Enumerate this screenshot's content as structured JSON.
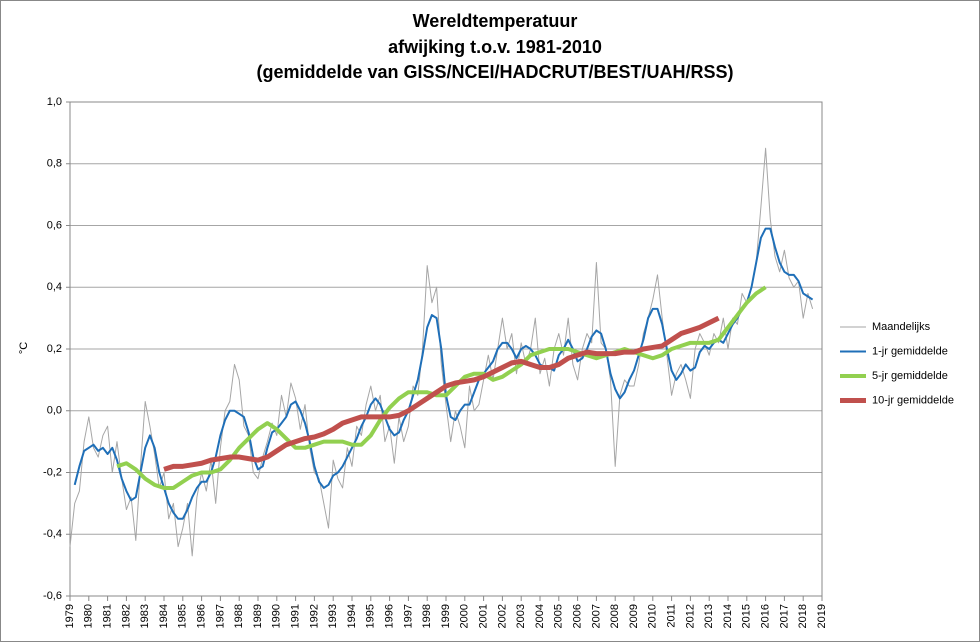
{
  "chart_data": {
    "type": "line",
    "title": "Wereldtemperatuur",
    "subtitle": [
      "afwijking t.o.v. 1981-2010",
      "(gemiddelde van GISS/NCEI/HADCRUT/BEST/UAH/RSS)"
    ],
    "y_label": "°C",
    "xlim": [
      1979,
      2019
    ],
    "xticks": [
      1979,
      1980,
      1981,
      1982,
      1983,
      1984,
      1985,
      1986,
      1987,
      1988,
      1989,
      1990,
      1991,
      1992,
      1993,
      1994,
      1995,
      1996,
      1997,
      1998,
      1999,
      2000,
      2001,
      2002,
      2003,
      2004,
      2005,
      2006,
      2007,
      2008,
      2009,
      2010,
      2011,
      2012,
      2013,
      2014,
      2015,
      2016,
      2017,
      2018,
      2019
    ],
    "ylim": [
      -0.6,
      1.0
    ],
    "yticks": [
      {
        "value": -0.6,
        "label": "-0,6"
      },
      {
        "value": -0.4,
        "label": "-0,4"
      },
      {
        "value": -0.2,
        "label": "-0,2"
      },
      {
        "value": 0,
        "label": "0,0"
      },
      {
        "value": 0.2,
        "label": "0,2"
      },
      {
        "value": 0.4,
        "label": "0,4"
      },
      {
        "value": 0.6,
        "label": "0,6"
      },
      {
        "value": 0.8,
        "label": "0,8"
      },
      {
        "value": 1.0,
        "label": "1,0"
      }
    ],
    "grid": true,
    "legend": "right",
    "series": [
      {
        "name": "Maandelijks",
        "color": "#a6a6a6",
        "width": 1,
        "x": [
          1979,
          1979.25,
          1979.5,
          1979.75,
          1980,
          1980.25,
          1980.5,
          1980.75,
          1981,
          1981.25,
          1981.5,
          1981.75,
          1982,
          1982.25,
          1982.5,
          1982.75,
          1983,
          1983.25,
          1983.5,
          1983.75,
          1984,
          1984.25,
          1984.5,
          1984.75,
          1985,
          1985.25,
          1985.5,
          1985.75,
          1986,
          1986.25,
          1986.5,
          1986.75,
          1987,
          1987.25,
          1987.5,
          1987.75,
          1988,
          1988.25,
          1988.5,
          1988.75,
          1989,
          1989.25,
          1989.5,
          1989.75,
          1990,
          1990.25,
          1990.5,
          1990.75,
          1991,
          1991.25,
          1991.5,
          1991.75,
          1992,
          1992.25,
          1992.5,
          1992.75,
          1993,
          1993.25,
          1993.5,
          1993.75,
          1994,
          1994.25,
          1994.5,
          1994.75,
          1995,
          1995.25,
          1995.5,
          1995.75,
          1996,
          1996.25,
          1996.5,
          1996.75,
          1997,
          1997.25,
          1997.5,
          1997.75,
          1998,
          1998.25,
          1998.5,
          1998.75,
          1999,
          1999.25,
          1999.5,
          1999.75,
          2000,
          2000.25,
          2000.5,
          2000.75,
          2001,
          2001.25,
          2001.5,
          2001.75,
          2002,
          2002.25,
          2002.5,
          2002.75,
          2003,
          2003.25,
          2003.5,
          2003.75,
          2004,
          2004.25,
          2004.5,
          2004.75,
          2005,
          2005.25,
          2005.5,
          2005.75,
          2006,
          2006.25,
          2006.5,
          2006.75,
          2007,
          2007.25,
          2007.5,
          2007.75,
          2008,
          2008.25,
          2008.5,
          2008.75,
          2009,
          2009.25,
          2009.5,
          2009.75,
          2010,
          2010.25,
          2010.5,
          2010.75,
          2011,
          2011.25,
          2011.5,
          2011.75,
          2012,
          2012.25,
          2012.5,
          2012.75,
          2013,
          2013.25,
          2013.5,
          2013.75,
          2014,
          2014.25,
          2014.5,
          2014.75,
          2015,
          2015.25,
          2015.5,
          2015.75,
          2016,
          2016.25,
          2016.5,
          2016.75,
          2017,
          2017.25,
          2017.5,
          2017.75,
          2018,
          2018.25,
          2018.5
        ],
        "values": [
          -0.44,
          -0.3,
          -0.26,
          -0.1,
          -0.02,
          -0.12,
          -0.15,
          -0.08,
          -0.05,
          -0.2,
          -0.1,
          -0.22,
          -0.32,
          -0.28,
          -0.42,
          -0.18,
          0.03,
          -0.05,
          -0.14,
          -0.25,
          -0.2,
          -0.35,
          -0.3,
          -0.44,
          -0.38,
          -0.3,
          -0.47,
          -0.28,
          -0.2,
          -0.26,
          -0.16,
          -0.3,
          -0.12,
          0.0,
          0.03,
          0.15,
          0.1,
          -0.05,
          -0.08,
          -0.2,
          -0.22,
          -0.15,
          -0.1,
          -0.04,
          -0.08,
          0.05,
          -0.02,
          0.09,
          0.04,
          -0.06,
          0.02,
          -0.12,
          -0.2,
          -0.22,
          -0.3,
          -0.38,
          -0.16,
          -0.22,
          -0.25,
          -0.12,
          -0.18,
          -0.05,
          -0.08,
          0.02,
          0.08,
          0.0,
          0.05,
          -0.1,
          -0.05,
          -0.17,
          -0.02,
          -0.1,
          -0.05,
          0.08,
          0.05,
          0.2,
          0.47,
          0.35,
          0.4,
          0.15,
          0.02,
          -0.1,
          0.0,
          -0.05,
          -0.12,
          0.08,
          0.0,
          0.02,
          0.1,
          0.18,
          0.1,
          0.2,
          0.3,
          0.2,
          0.25,
          0.12,
          0.22,
          0.15,
          0.2,
          0.3,
          0.12,
          0.17,
          0.08,
          0.2,
          0.25,
          0.18,
          0.3,
          0.15,
          0.1,
          0.2,
          0.25,
          0.22,
          0.48,
          0.22,
          0.2,
          0.1,
          -0.18,
          0.05,
          0.1,
          0.08,
          0.08,
          0.15,
          0.25,
          0.3,
          0.36,
          0.44,
          0.3,
          0.18,
          0.05,
          0.12,
          0.15,
          0.1,
          0.04,
          0.2,
          0.25,
          0.22,
          0.18,
          0.25,
          0.22,
          0.3,
          0.2,
          0.3,
          0.28,
          0.38,
          0.35,
          0.4,
          0.48,
          0.66,
          0.85,
          0.62,
          0.5,
          0.45,
          0.52,
          0.43,
          0.4,
          0.42,
          0.3,
          0.38,
          0.33
        ]
      },
      {
        "name": "1-jr gemiddelde",
        "color": "#1f6fb8",
        "width": 2,
        "x": [
          1979.25,
          1979.5,
          1979.75,
          1980,
          1980.25,
          1980.5,
          1980.75,
          1981,
          1981.25,
          1981.5,
          1981.75,
          1982,
          1982.25,
          1982.5,
          1982.75,
          1983,
          1983.25,
          1983.5,
          1983.75,
          1984,
          1984.25,
          1984.5,
          1984.75,
          1985,
          1985.25,
          1985.5,
          1985.75,
          1986,
          1986.25,
          1986.5,
          1986.75,
          1987,
          1987.25,
          1987.5,
          1987.75,
          1988,
          1988.25,
          1988.5,
          1988.75,
          1989,
          1989.25,
          1989.5,
          1989.75,
          1990,
          1990.25,
          1990.5,
          1990.75,
          1991,
          1991.25,
          1991.5,
          1991.75,
          1992,
          1992.25,
          1992.5,
          1992.75,
          1993,
          1993.25,
          1993.5,
          1993.75,
          1994,
          1994.25,
          1994.5,
          1994.75,
          1995,
          1995.25,
          1995.5,
          1995.75,
          1996,
          1996.25,
          1996.5,
          1996.75,
          1997,
          1997.25,
          1997.5,
          1997.75,
          1998,
          1998.25,
          1998.5,
          1998.75,
          1999,
          1999.25,
          1999.5,
          1999.75,
          2000,
          2000.25,
          2000.5,
          2000.75,
          2001,
          2001.25,
          2001.5,
          2001.75,
          2002,
          2002.25,
          2002.5,
          2002.75,
          2003,
          2003.25,
          2003.5,
          2003.75,
          2004,
          2004.25,
          2004.5,
          2004.75,
          2005,
          2005.25,
          2005.5,
          2005.75,
          2006,
          2006.25,
          2006.5,
          2006.75,
          2007,
          2007.25,
          2007.5,
          2007.75,
          2008,
          2008.25,
          2008.5,
          2008.75,
          2009,
          2009.25,
          2009.5,
          2009.75,
          2010,
          2010.25,
          2010.5,
          2010.75,
          2011,
          2011.25,
          2011.5,
          2011.75,
          2012,
          2012.25,
          2012.5,
          2012.75,
          2013,
          2013.25,
          2013.5,
          2013.75,
          2014,
          2014.25,
          2014.5,
          2014.75,
          2015,
          2015.25,
          2015.5,
          2015.75,
          2016,
          2016.25,
          2016.5,
          2016.75,
          2017,
          2017.25,
          2017.5,
          2017.75,
          2018,
          2018.25,
          2018.5
        ],
        "values": [
          -0.24,
          -0.18,
          -0.13,
          -0.12,
          -0.11,
          -0.13,
          -0.12,
          -0.14,
          -0.12,
          -0.16,
          -0.22,
          -0.26,
          -0.29,
          -0.28,
          -0.2,
          -0.12,
          -0.08,
          -0.12,
          -0.2,
          -0.25,
          -0.3,
          -0.33,
          -0.35,
          -0.35,
          -0.32,
          -0.28,
          -0.25,
          -0.23,
          -0.23,
          -0.2,
          -0.15,
          -0.08,
          -0.03,
          0.0,
          0.0,
          -0.01,
          -0.02,
          -0.07,
          -0.15,
          -0.19,
          -0.18,
          -0.12,
          -0.07,
          -0.06,
          -0.04,
          -0.02,
          0.02,
          0.03,
          0.0,
          -0.04,
          -0.1,
          -0.18,
          -0.23,
          -0.25,
          -0.24,
          -0.21,
          -0.2,
          -0.18,
          -0.15,
          -0.12,
          -0.09,
          -0.05,
          -0.02,
          0.02,
          0.04,
          0.02,
          -0.02,
          -0.06,
          -0.08,
          -0.07,
          -0.03,
          0.0,
          0.05,
          0.1,
          0.18,
          0.27,
          0.31,
          0.3,
          0.2,
          0.05,
          -0.02,
          -0.03,
          0.0,
          0.02,
          0.02,
          0.06,
          0.1,
          0.12,
          0.14,
          0.16,
          0.2,
          0.22,
          0.22,
          0.2,
          0.17,
          0.2,
          0.21,
          0.2,
          0.18,
          0.15,
          0.14,
          0.14,
          0.13,
          0.18,
          0.2,
          0.23,
          0.2,
          0.16,
          0.17,
          0.2,
          0.24,
          0.26,
          0.25,
          0.2,
          0.12,
          0.07,
          0.04,
          0.06,
          0.1,
          0.13,
          0.18,
          0.23,
          0.3,
          0.33,
          0.33,
          0.28,
          0.2,
          0.13,
          0.1,
          0.12,
          0.15,
          0.13,
          0.14,
          0.19,
          0.21,
          0.2,
          0.22,
          0.23,
          0.22,
          0.25,
          0.28,
          0.3,
          0.33,
          0.35,
          0.4,
          0.48,
          0.56,
          0.59,
          0.59,
          0.53,
          0.48,
          0.45,
          0.44,
          0.44,
          0.42,
          0.38,
          0.37,
          0.36
        ]
      },
      {
        "name": "5-jr gemiddelde",
        "color": "#92d050",
        "width": 4,
        "x": [
          1981.5,
          1982,
          1982.5,
          1983,
          1983.5,
          1984,
          1984.5,
          1985,
          1985.5,
          1986,
          1986.5,
          1987,
          1987.5,
          1988,
          1988.5,
          1989,
          1989.5,
          1990,
          1990.5,
          1991,
          1991.5,
          1992,
          1992.5,
          1993,
          1993.5,
          1994,
          1994.5,
          1995,
          1995.5,
          1996,
          1996.5,
          1997,
          1997.5,
          1998,
          1998.5,
          1999,
          1999.5,
          2000,
          2000.5,
          2001,
          2001.5,
          2002,
          2002.5,
          2003,
          2003.5,
          2004,
          2004.5,
          2005,
          2005.5,
          2006,
          2006.5,
          2007,
          2007.5,
          2008,
          2008.5,
          2009,
          2009.5,
          2010,
          2010.5,
          2011,
          2011.5,
          2012,
          2012.5,
          2013,
          2013.5,
          2014,
          2014.5,
          2015,
          2015.5,
          2016
        ],
        "values": [
          -0.18,
          -0.17,
          -0.19,
          -0.22,
          -0.24,
          -0.25,
          -0.25,
          -0.23,
          -0.21,
          -0.2,
          -0.2,
          -0.19,
          -0.16,
          -0.12,
          -0.09,
          -0.06,
          -0.04,
          -0.06,
          -0.09,
          -0.12,
          -0.12,
          -0.11,
          -0.1,
          -0.1,
          -0.1,
          -0.11,
          -0.11,
          -0.08,
          -0.03,
          0.01,
          0.04,
          0.06,
          0.06,
          0.06,
          0.05,
          0.05,
          0.08,
          0.11,
          0.12,
          0.12,
          0.1,
          0.11,
          0.13,
          0.15,
          0.18,
          0.19,
          0.2,
          0.2,
          0.2,
          0.19,
          0.18,
          0.17,
          0.18,
          0.19,
          0.2,
          0.19,
          0.18,
          0.17,
          0.18,
          0.2,
          0.21,
          0.22,
          0.22,
          0.22,
          0.23,
          0.27,
          0.31,
          0.35,
          0.38,
          0.4
        ]
      },
      {
        "name": "10-jr gemiddelde",
        "color": "#c0504d",
        "width": 5,
        "x": [
          1984,
          1984.5,
          1985,
          1985.5,
          1986,
          1986.5,
          1987,
          1987.5,
          1988,
          1988.5,
          1989,
          1989.5,
          1990,
          1990.5,
          1991,
          1991.5,
          1992,
          1992.5,
          1993,
          1993.5,
          1994,
          1994.5,
          1995,
          1995.5,
          1996,
          1996.5,
          1997,
          1997.5,
          1998,
          1998.5,
          1999,
          1999.5,
          2000,
          2000.5,
          2001,
          2001.5,
          2002,
          2002.5,
          2003,
          2003.5,
          2004,
          2004.5,
          2005,
          2005.5,
          2006,
          2006.5,
          2007,
          2007.5,
          2008,
          2008.5,
          2009,
          2009.5,
          2010,
          2010.5,
          2011,
          2011.5,
          2012,
          2012.5,
          2013,
          2013.5
        ],
        "values": [
          -0.19,
          -0.18,
          -0.18,
          -0.175,
          -0.17,
          -0.16,
          -0.155,
          -0.15,
          -0.15,
          -0.155,
          -0.16,
          -0.15,
          -0.13,
          -0.11,
          -0.1,
          -0.09,
          -0.085,
          -0.075,
          -0.06,
          -0.04,
          -0.03,
          -0.02,
          -0.02,
          -0.02,
          -0.02,
          -0.015,
          0.0,
          0.02,
          0.04,
          0.06,
          0.08,
          0.09,
          0.095,
          0.1,
          0.11,
          0.125,
          0.14,
          0.155,
          0.16,
          0.15,
          0.14,
          0.14,
          0.15,
          0.17,
          0.18,
          0.19,
          0.185,
          0.185,
          0.185,
          0.19,
          0.19,
          0.2,
          0.205,
          0.21,
          0.23,
          0.25,
          0.26,
          0.27,
          0.285,
          0.3
        ]
      }
    ]
  }
}
